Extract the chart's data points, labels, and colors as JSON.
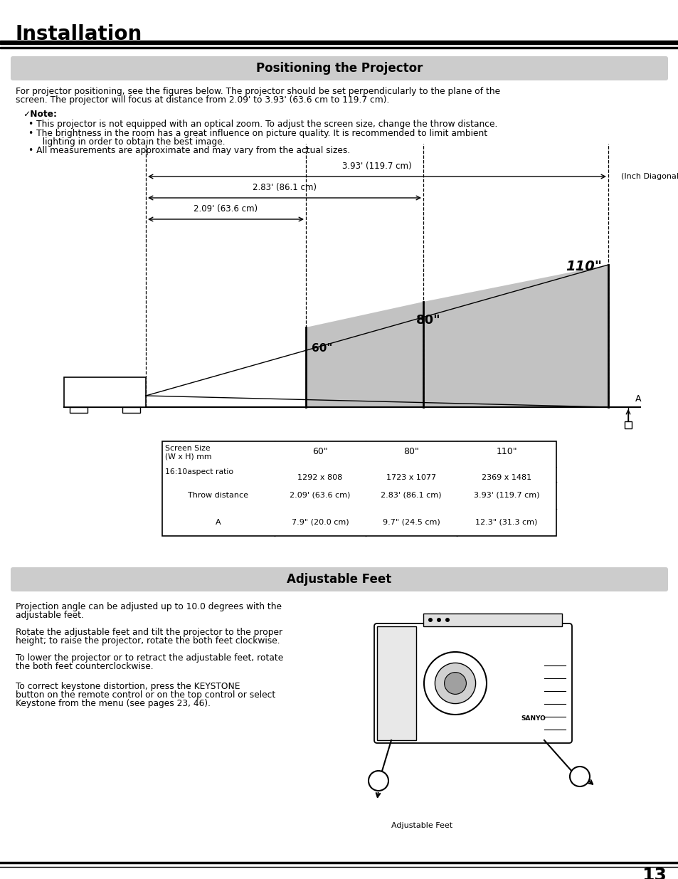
{
  "page_bg": "#ffffff",
  "title_header": "Installation",
  "section1_title": "Positioning the Projector",
  "section2_title": "Adjustable Feet",
  "section1_bg": "#cccccc",
  "section2_bg": "#cccccc",
  "intro_text1": "For projector positioning, see the figures below. The projector should be set perpendicularly to the plane of the",
  "intro_text2": "screen. The projector will focus at distance from 2.09' to 3.93' (63.6 cm to 119.7 cm).",
  "note_label": "✓Note:",
  "note_bullet1": "• This projector is not equipped with an optical zoom. To adjust the screen size, change the throw distance.",
  "note_bullet2a": "• The brightness in the room has a great influence on picture quality. It is recommended to limit ambient",
  "note_bullet2b": "  lighting in order to obtain the best image.",
  "note_bullet3": "• All measurements are approximate and may vary from the actual sizes.",
  "diagram_label_393": "3.93' (119.7 cm)",
  "diagram_label_283": "2.83' (86.1 cm)",
  "diagram_label_209": "2.09' (63.6 cm)",
  "diagram_label_inch_diag": "(Inch Diagonal)",
  "diagram_label_110": "110\"",
  "diagram_label_80": "80\"",
  "diagram_label_60": "60\"",
  "diagram_label_A": "A",
  "table_col0_line1": "Screen Size",
  "table_col0_line2": "(W x H) mm",
  "table_col0_line3": "16:10aspect ratio",
  "table_headers": [
    "60\"",
    "80\"",
    "110\""
  ],
  "table_row1": [
    "1292 x 808",
    "1723 x 1077",
    "2369 x 1481"
  ],
  "table_row2_label": "Throw distance",
  "table_row2": [
    "2.09' (63.6 cm)",
    "2.83' (86.1 cm)",
    "3.93' (119.7 cm)"
  ],
  "table_row3_label": "A",
  "table_row3": [
    "7.9\" (20.0 cm)",
    "9.7\" (24.5 cm)",
    "12.3\" (31.3 cm)"
  ],
  "adj_feet_text1a": "Projection angle can be adjusted up to 10.0 degrees with the",
  "adj_feet_text1b": "adjustable feet.",
  "adj_feet_text2a": "Rotate the adjustable feet and tilt the projector to the proper",
  "adj_feet_text2b": "height; to raise the projector, rotate the both feet clockwise.",
  "adj_feet_text3a": "To lower the projector or to retract the adjustable feet, rotate",
  "adj_feet_text3b": "the both feet counterclockwise.",
  "adj_feet_text4a": "To correct keystone distortion, press the KEYSTONE",
  "adj_feet_text4b": "button on the remote control or on the top control or select",
  "adj_feet_text4c": "Keystone from the menu (see pages 23, 46).",
  "adj_feet_caption": "Adjustable Feet",
  "page_number": "13",
  "gray_fill": "#b8b8b8",
  "light_gray": "#c8c8c8"
}
